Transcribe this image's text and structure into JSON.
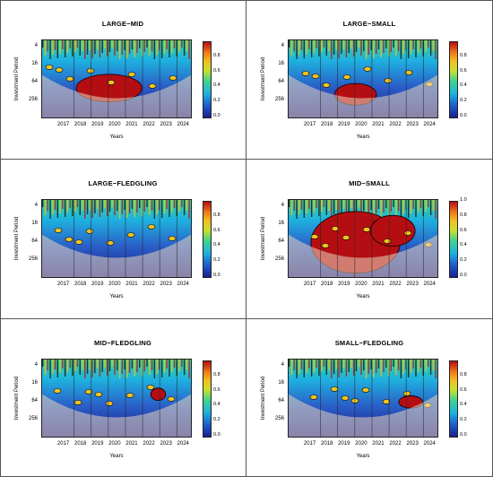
{
  "chart_data": [
    {
      "type": "heatmap",
      "title": "LARGE−MID",
      "xlabel": "Years",
      "ylabel": "Investment Period",
      "xticks": [
        "2017",
        "2018",
        "2019",
        "2020",
        "2021",
        "2022",
        "2023",
        "2024"
      ],
      "yticks": [
        "4",
        "16",
        "64",
        "256"
      ],
      "colorbar_ticks": [
        "0.8",
        "0.6",
        "0.4",
        "0.2",
        "0.0"
      ],
      "colorbar_range": [
        0,
        1
      ]
    },
    {
      "type": "heatmap",
      "title": "LARGE−SMALL",
      "xlabel": "Years",
      "ylabel": "Investment Period",
      "xticks": [
        "2017",
        "2018",
        "2019",
        "2020",
        "2021",
        "2022",
        "2023",
        "2024"
      ],
      "yticks": [
        "4",
        "16",
        "64",
        "256"
      ],
      "colorbar_ticks": [
        "0.8",
        "0.6",
        "0.4",
        "0.2",
        "0.0"
      ],
      "colorbar_range": [
        0,
        1
      ]
    },
    {
      "type": "heatmap",
      "title": "LARGE−FLEDGLING",
      "xlabel": "Years",
      "ylabel": "Investment Period",
      "xticks": [
        "2017",
        "2018",
        "2019",
        "2020",
        "2021",
        "2022",
        "2023",
        "2024"
      ],
      "yticks": [
        "4",
        "16",
        "64",
        "256"
      ],
      "colorbar_ticks": [
        "0.8",
        "0.6",
        "0.4",
        "0.2",
        "0.0"
      ],
      "colorbar_range": [
        0,
        1
      ]
    },
    {
      "type": "heatmap",
      "title": "MID−SMALL",
      "xlabel": "Years",
      "ylabel": "Investment Period",
      "xticks": [
        "2017",
        "2018",
        "2019",
        "2020",
        "2021",
        "2022",
        "2023",
        "2024"
      ],
      "yticks": [
        "4",
        "16",
        "64",
        "256"
      ],
      "colorbar_ticks": [
        "1.0",
        "0.8",
        "0.6",
        "0.4",
        "0.2",
        "0.0"
      ],
      "colorbar_range": [
        0,
        1
      ]
    },
    {
      "type": "heatmap",
      "title": "MID−FLEDGLING",
      "xlabel": "Years",
      "ylabel": "Investment Period",
      "xticks": [
        "2017",
        "2018",
        "2019",
        "2020",
        "2021",
        "2022",
        "2023",
        "2024"
      ],
      "yticks": [
        "4",
        "16",
        "64",
        "256"
      ],
      "colorbar_ticks": [
        "0.8",
        "0.6",
        "0.4",
        "0.2",
        "0.0"
      ],
      "colorbar_range": [
        0,
        1
      ]
    },
    {
      "type": "heatmap",
      "title": "SMALL−FLEDGLING",
      "xlabel": "Years",
      "ylabel": "Investment Period",
      "xticks": [
        "2017",
        "2018",
        "2019",
        "2020",
        "2021",
        "2022",
        "2023",
        "2024"
      ],
      "yticks": [
        "4",
        "16",
        "64",
        "256"
      ],
      "colorbar_ticks": [
        "0.8",
        "0.6",
        "0.4",
        "0.2",
        "0.0"
      ],
      "colorbar_range": [
        0,
        1
      ]
    }
  ],
  "colors": {
    "low": "#1b1f8f",
    "mid_low": "#1eb3e0",
    "mid": "#3fd28f",
    "mid_high": "#f2c21f",
    "high": "#b50e12",
    "cone_shade": "#e8d6c0"
  }
}
